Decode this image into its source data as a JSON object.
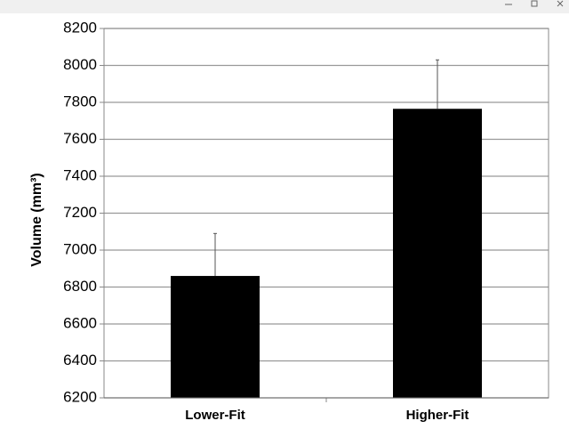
{
  "chart_data": {
    "type": "bar",
    "ylabel": "Volume (mm³)",
    "categories": [
      "Lower-Fit",
      "Higher-Fit"
    ],
    "values": [
      6860,
      7765
    ],
    "errors": [
      230,
      265
    ],
    "color": "#000000",
    "ylim": [
      6200,
      8200
    ],
    "yticks": [
      6200,
      6400,
      6600,
      6800,
      7000,
      7200,
      7400,
      7600,
      7800,
      8000,
      8200
    ],
    "grid": true
  }
}
